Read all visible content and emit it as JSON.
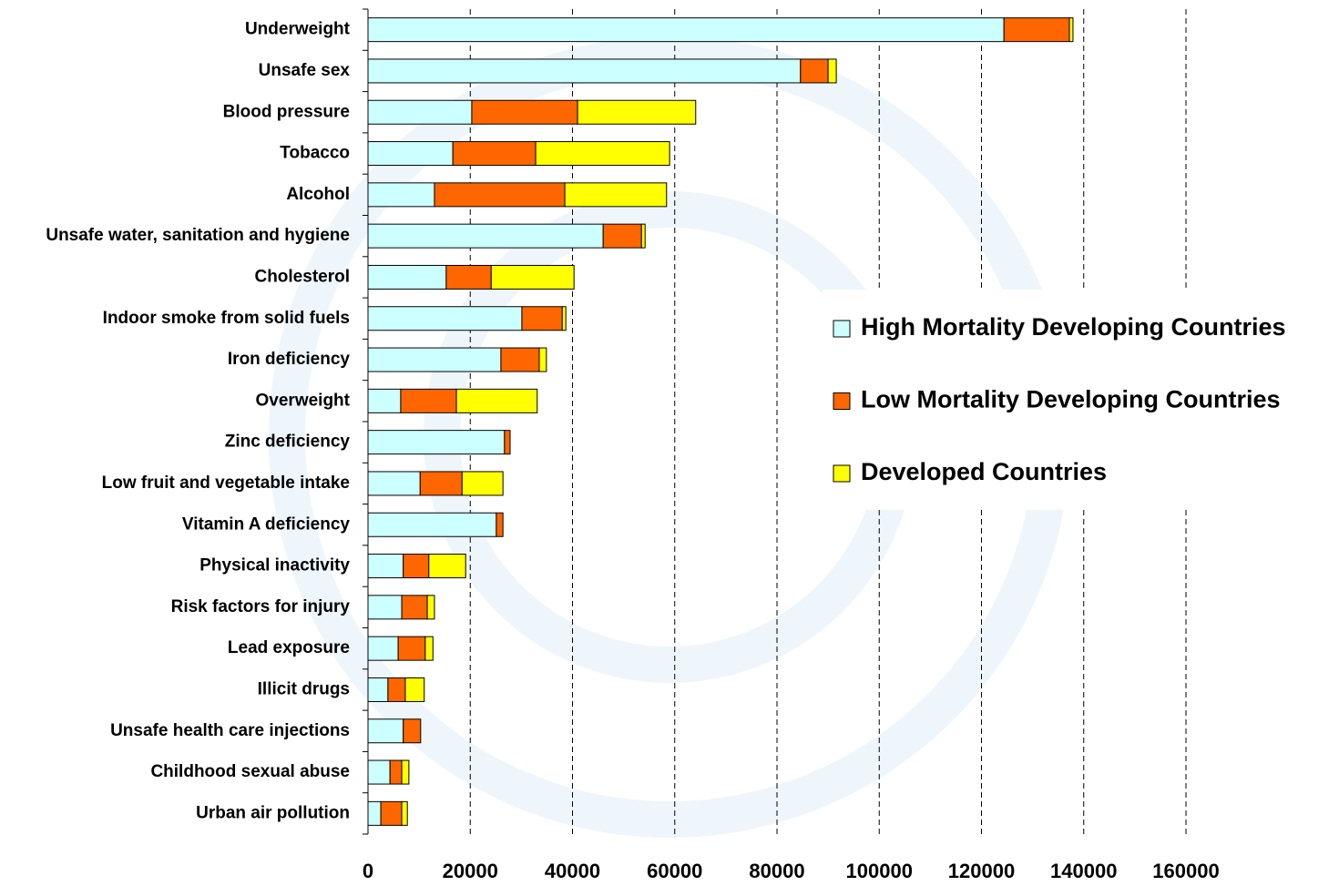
{
  "chart_data": {
    "type": "stacked-bar-horizontal",
    "categories": [
      "Underweight",
      "Unsafe sex",
      "Blood pressure",
      "Tobacco",
      "Alcohol",
      "Unsafe water, sanitation and hygiene",
      "Cholesterol",
      "Indoor smoke from solid fuels",
      "Iron deficiency",
      "Overweight",
      "Zinc deficiency",
      "Low fruit and vegetable intake",
      "Vitamin A deficiency",
      "Physical inactivity",
      "Risk factors for injury",
      "Lead exposure",
      "Illicit drugs",
      "Unsafe health care injections",
      "Childhood sexual abuse",
      "Urban air pollution"
    ],
    "series": [
      {
        "name": "High Mortality Developing Countries",
        "color": "#ccffff",
        "values": [
          124400,
          84600,
          20300,
          16600,
          13000,
          46000,
          15300,
          30100,
          26000,
          6400,
          26700,
          10200,
          25100,
          6900,
          6600,
          5900,
          3900,
          6900,
          4300,
          2500
        ]
      },
      {
        "name": "Low Mortality Developing Countries",
        "color": "#ff6600",
        "values": [
          12800,
          5400,
          20700,
          16200,
          25500,
          7500,
          8800,
          7900,
          7500,
          10900,
          1100,
          8200,
          1300,
          5000,
          5000,
          5300,
          3400,
          3400,
          2300,
          4100
        ]
      },
      {
        "name": "Developed Countries",
        "color": "#ffff00",
        "values": [
          700,
          1600,
          23100,
          26200,
          19900,
          700,
          16200,
          700,
          1400,
          15800,
          0,
          8000,
          0,
          7200,
          1400,
          1500,
          3700,
          0,
          1400,
          1100
        ]
      }
    ],
    "xlim": [
      0,
      160000
    ],
    "xticks": [
      0,
      20000,
      40000,
      60000,
      80000,
      100000,
      120000,
      140000,
      160000
    ],
    "grid": true
  }
}
